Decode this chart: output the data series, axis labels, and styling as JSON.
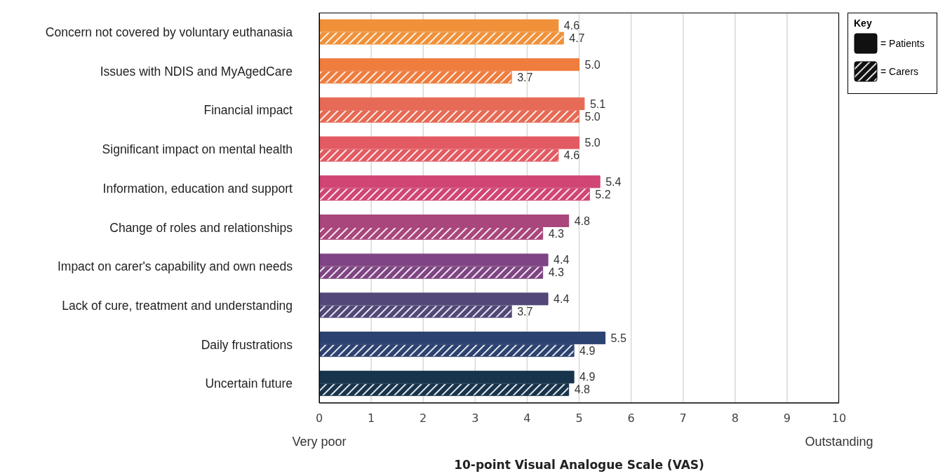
{
  "chart_data": {
    "type": "bar",
    "orientation": "horizontal",
    "categories": [
      "Concern not covered by voluntary euthanasia",
      "Issues with NDIS and MyAgedCare",
      "Financial impact",
      "Significant impact on mental health",
      "Information, education and support",
      "Change of roles and relationships",
      "Impact on carer's capability and own needs",
      "Lack of cure, treatment and understanding",
      "Daily frustrations",
      "Uncertain future"
    ],
    "series": [
      {
        "name": "= Patients",
        "color": "#111111",
        "colors": [
          "#f0913a",
          "#ee7d3e",
          "#e66a55",
          "#e25a62",
          "#d04573",
          "#a9467c",
          "#7e4483",
          "#524777",
          "#2c4270",
          "#17344c"
        ],
        "values": [
          4.6,
          5.0,
          5.1,
          5.0,
          5.4,
          4.8,
          4.4,
          4.4,
          5.5,
          4.9
        ],
        "value_labels": [
          "4.6",
          "5.0",
          "5.1",
          "5.0",
          "5.4",
          "4.8",
          "4.4",
          "4.4",
          "5.5",
          "4.9"
        ]
      },
      {
        "name": "= Carers",
        "color": "#111111",
        "colors": [
          "#f0913a",
          "#ee7d3e",
          "#e66a55",
          "#e25a62",
          "#d04573",
          "#a9467c",
          "#7e4483",
          "#524777",
          "#2c4270",
          "#17344c"
        ],
        "values": [
          4.7,
          3.7,
          5.0,
          4.6,
          5.2,
          4.3,
          4.3,
          3.7,
          4.9,
          4.8
        ],
        "value_labels": [
          "4.7",
          "3.7",
          "5.0",
          "4.6",
          "5.2",
          "4.3",
          "4.3",
          "3.7",
          "4.9",
          "4.8"
        ]
      }
    ],
    "xlim": [
      0,
      10
    ],
    "xticks": [
      0,
      1,
      2,
      3,
      4,
      5,
      6,
      7,
      8,
      9,
      10
    ],
    "xlabel": "10-point Visual Analogue Scale (VAS)",
    "annotations": [
      "Very poor",
      "Outstanding"
    ],
    "grid": "x",
    "legend": "top right",
    "legend_title": "Key"
  }
}
